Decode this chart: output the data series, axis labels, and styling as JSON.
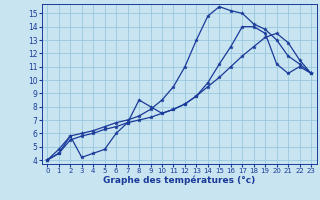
{
  "xlabel": "Graphe des températures (°c)",
  "background_color": "#c8e4f0",
  "grid_color": "#99c8df",
  "line_color": "#1a3a9a",
  "xlim_min": -0.5,
  "xlim_max": 23.5,
  "ylim_min": 3.7,
  "ylim_max": 15.7,
  "xticks": [
    0,
    1,
    2,
    3,
    4,
    5,
    6,
    7,
    8,
    9,
    10,
    11,
    12,
    13,
    14,
    15,
    16,
    17,
    18,
    19,
    20,
    21,
    22,
    23
  ],
  "yticks": [
    4,
    5,
    6,
    7,
    8,
    9,
    10,
    11,
    12,
    13,
    14,
    15
  ],
  "line1_x": [
    0,
    1,
    2,
    3,
    4,
    5,
    6,
    7,
    8,
    9,
    10,
    11,
    12,
    13,
    14,
    15,
    16,
    17,
    18,
    19,
    20,
    21,
    22,
    23
  ],
  "line1_y": [
    4.0,
    4.5,
    5.8,
    6.0,
    6.2,
    6.5,
    6.8,
    7.0,
    7.3,
    7.8,
    8.5,
    9.5,
    11.0,
    13.0,
    14.8,
    15.5,
    15.2,
    15.0,
    14.2,
    13.8,
    13.0,
    11.8,
    11.2,
    10.5
  ],
  "line2_x": [
    0,
    1,
    2,
    3,
    4,
    5,
    6,
    7,
    8,
    9,
    10,
    11,
    12,
    13,
    14,
    15,
    16,
    17,
    18,
    19,
    20,
    21,
    22,
    23
  ],
  "line2_y": [
    4.0,
    4.8,
    5.8,
    4.2,
    4.5,
    4.8,
    6.0,
    6.8,
    8.5,
    8.0,
    7.5,
    7.8,
    8.2,
    8.8,
    9.8,
    11.2,
    12.5,
    14.0,
    14.0,
    13.5,
    11.2,
    10.5,
    11.0,
    10.5
  ],
  "line3_x": [
    0,
    1,
    2,
    3,
    4,
    5,
    6,
    7,
    8,
    9,
    10,
    11,
    12,
    13,
    14,
    15,
    16,
    17,
    18,
    19,
    20,
    21,
    22,
    23
  ],
  "line3_y": [
    4.0,
    4.5,
    5.5,
    5.8,
    6.0,
    6.3,
    6.5,
    6.8,
    7.0,
    7.2,
    7.5,
    7.8,
    8.2,
    8.8,
    9.5,
    10.2,
    11.0,
    11.8,
    12.5,
    13.2,
    13.5,
    12.8,
    11.5,
    10.5
  ],
  "tick_fontsize_x": 5.0,
  "tick_fontsize_y": 5.5,
  "xlabel_fontsize": 6.5,
  "linewidth": 0.9,
  "markersize": 2.8
}
